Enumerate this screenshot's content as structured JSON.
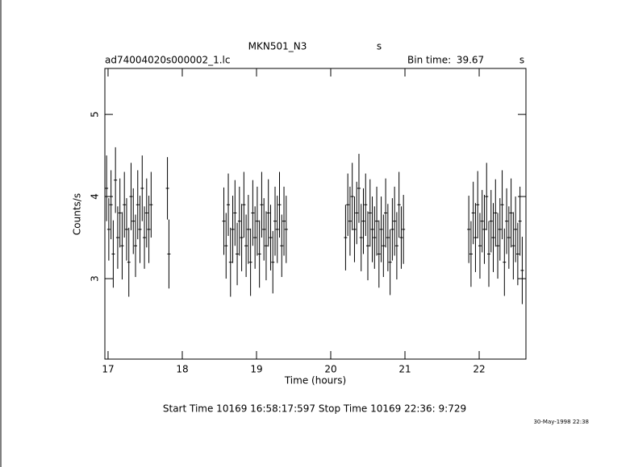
{
  "chart_data": {
    "type": "errorbar",
    "title": "MKN501_N3",
    "title_unit": "s",
    "subtitle": "ad74004020s000002_1.lc",
    "bin_label": "Bin time:",
    "bin_time": "39.67",
    "bin_unit": "s",
    "x_label": "Time (hours)",
    "y_label": "Counts/s",
    "footer": "Start Time 10169 16:58:17:597    Stop Time 10169 22:36: 9:729",
    "date_stamp": "30-May-1998 22:38",
    "xlim": [
      16.957,
      22.63
    ],
    "ylim": [
      2.02,
      5.56
    ],
    "xticks": [
      17,
      18,
      19,
      20,
      21,
      22
    ],
    "yticks": [
      3,
      4,
      5
    ],
    "series": [
      {
        "name": "MKN501_N3",
        "color": "#000000",
        "x": [
          16.98,
          17.01,
          17.04,
          17.07,
          17.1,
          17.13,
          17.16,
          17.19,
          17.22,
          17.25,
          17.28,
          17.31,
          17.34,
          17.37,
          17.4,
          17.43,
          17.46,
          17.49,
          17.52,
          17.55,
          17.58,
          17.8,
          17.82,
          18.56,
          18.59,
          18.62,
          18.65,
          18.68,
          18.71,
          18.74,
          18.77,
          18.8,
          18.83,
          18.86,
          18.89,
          18.92,
          18.95,
          18.98,
          19.01,
          19.04,
          19.07,
          19.1,
          19.13,
          19.16,
          19.19,
          19.22,
          19.25,
          19.28,
          19.31,
          19.34,
          19.37,
          19.4,
          20.2,
          20.23,
          20.26,
          20.29,
          20.32,
          20.35,
          20.38,
          20.41,
          20.44,
          20.47,
          20.5,
          20.53,
          20.56,
          20.59,
          20.62,
          20.65,
          20.68,
          20.71,
          20.74,
          20.77,
          20.8,
          20.83,
          20.86,
          20.89,
          20.92,
          20.95,
          20.98,
          21.86,
          21.89,
          21.92,
          21.95,
          21.98,
          22.01,
          22.04,
          22.07,
          22.1,
          22.13,
          22.16,
          22.19,
          22.22,
          22.25,
          22.28,
          22.31,
          22.34,
          22.37,
          22.4,
          22.43,
          22.46,
          22.49,
          22.52,
          22.55,
          22.58
        ],
        "values": [
          4.1,
          3.6,
          3.9,
          3.3,
          4.2,
          3.5,
          3.8,
          3.4,
          3.9,
          3.6,
          3.2,
          4.0,
          3.7,
          3.4,
          3.9,
          3.6,
          4.1,
          3.5,
          3.8,
          3.6,
          3.9,
          4.1,
          3.3,
          3.7,
          3.4,
          3.9,
          3.2,
          3.6,
          3.8,
          3.3,
          3.7,
          3.5,
          3.9,
          3.4,
          3.6,
          3.2,
          3.8,
          3.5,
          3.7,
          3.3,
          3.9,
          3.6,
          3.4,
          3.8,
          3.5,
          3.2,
          3.7,
          3.6,
          3.9,
          3.4,
          3.7,
          3.6,
          3.5,
          3.9,
          3.7,
          4.0,
          3.6,
          3.8,
          4.1,
          3.5,
          3.7,
          3.9,
          3.4,
          3.8,
          3.6,
          3.5,
          3.7,
          3.3,
          3.6,
          3.4,
          3.8,
          3.5,
          3.2,
          3.6,
          3.7,
          3.4,
          3.9,
          3.5,
          3.6,
          3.6,
          3.3,
          3.8,
          3.5,
          3.9,
          3.4,
          3.7,
          3.6,
          4.0,
          3.3,
          3.7,
          3.5,
          3.8,
          3.4,
          3.6,
          3.9,
          3.2,
          3.7,
          3.5,
          3.8,
          3.4,
          3.6,
          3.3,
          3.7,
          3.1
        ],
        "errors": [
          0.4,
          0.38,
          0.42,
          0.41,
          0.4,
          0.38,
          0.42,
          0.41,
          0.4,
          0.38,
          0.42,
          0.41,
          0.4,
          0.38,
          0.42,
          0.41,
          0.4,
          0.38,
          0.42,
          0.41,
          0.4,
          0.38,
          0.42,
          0.41,
          0.4,
          0.38,
          0.42,
          0.41,
          0.4,
          0.38,
          0.42,
          0.41,
          0.4,
          0.38,
          0.42,
          0.41,
          0.4,
          0.38,
          0.42,
          0.41,
          0.4,
          0.38,
          0.42,
          0.41,
          0.4,
          0.38,
          0.42,
          0.41,
          0.4,
          0.38,
          0.42,
          0.41,
          0.4,
          0.38,
          0.42,
          0.41,
          0.4,
          0.38,
          0.42,
          0.41,
          0.4,
          0.38,
          0.42,
          0.41,
          0.4,
          0.38,
          0.42,
          0.41,
          0.4,
          0.38,
          0.42,
          0.41,
          0.4,
          0.38,
          0.42,
          0.41,
          0.4,
          0.38,
          0.42,
          0.41,
          0.4,
          0.38,
          0.42,
          0.41,
          0.4,
          0.38,
          0.42,
          0.41,
          0.4,
          0.38,
          0.42,
          0.41,
          0.4,
          0.38,
          0.42,
          0.41,
          0.4,
          0.38,
          0.42,
          0.41,
          0.4,
          0.38,
          0.42,
          0.41
        ]
      }
    ]
  }
}
